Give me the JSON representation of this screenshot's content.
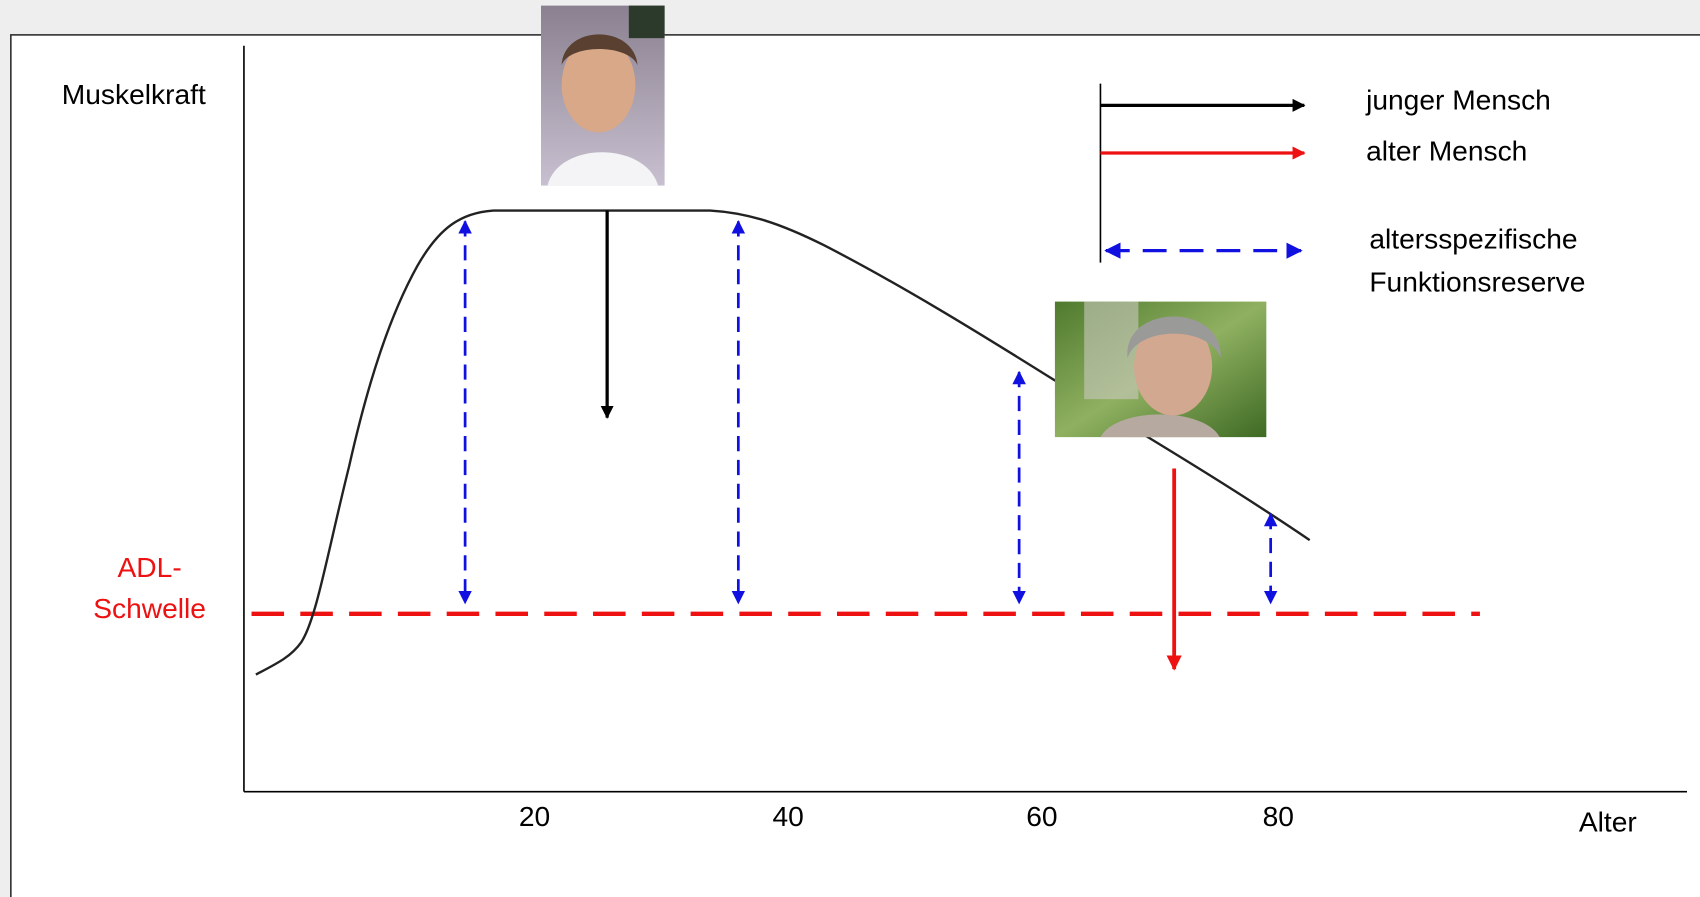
{
  "axis": {
    "y_label": "Muskelkraft",
    "x_label": "Alter",
    "x_ticks": [
      "20",
      "40",
      "60",
      "80"
    ]
  },
  "threshold": {
    "label_lines": [
      "ADL-",
      "Schwelle"
    ]
  },
  "legend": {
    "items": [
      {
        "label": "junger Mensch"
      },
      {
        "label": "alter Mensch"
      },
      {
        "label_lines": [
          "altersspezifische",
          "Funktionsreserve"
        ]
      }
    ]
  }
}
